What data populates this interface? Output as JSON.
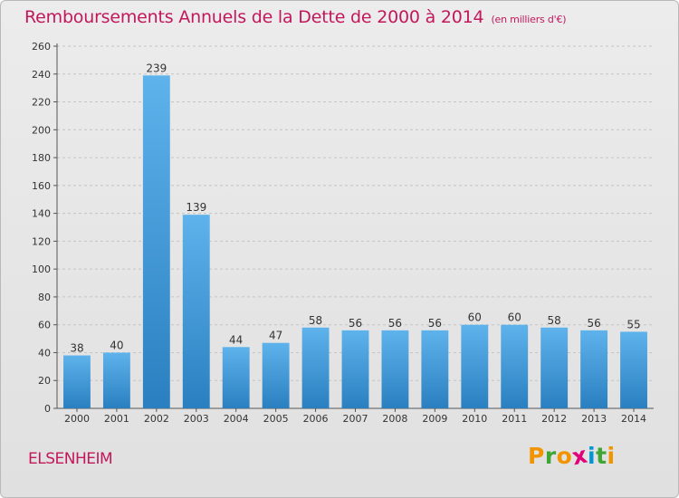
{
  "chart_data": {
    "type": "bar",
    "title": "Remboursements Annuels de la Dette de 2000 à 2014",
    "unit_note": "(en milliers d'€)",
    "categories": [
      "2000",
      "2001",
      "2002",
      "2003",
      "2004",
      "2005",
      "2006",
      "2007",
      "2008",
      "2009",
      "2010",
      "2011",
      "2012",
      "2013",
      "2014"
    ],
    "values": [
      38,
      40,
      239,
      139,
      44,
      47,
      58,
      56,
      56,
      56,
      60,
      60,
      58,
      56,
      55
    ],
    "ylim": [
      0,
      260
    ],
    "yticks": [
      0,
      20,
      40,
      60,
      80,
      100,
      120,
      140,
      160,
      180,
      200,
      220,
      240,
      260
    ],
    "grid": true,
    "bar_color": "#3f95d6",
    "title_color": "#c2185b"
  },
  "commune": "ELSENHEIM",
  "logo": {
    "letters": [
      "P",
      "r",
      "o",
      "x",
      "i",
      "t",
      "i"
    ],
    "colors": [
      "#f29400",
      "#3fa535",
      "#f29400",
      "#e2007a",
      "#0096d6",
      "#3fa535",
      "#f29400"
    ]
  }
}
